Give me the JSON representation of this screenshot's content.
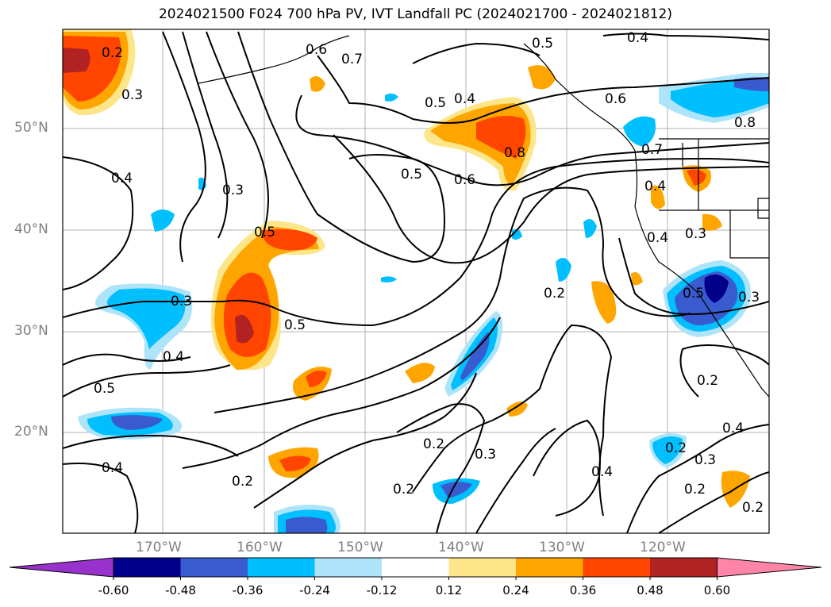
{
  "title": "2024021500 F024 700 hPa PV, IVT Landfall PC (2024021700 - 2024021812)",
  "lat_labels": [
    "50°N",
    "40°N",
    "30°N",
    "20°N"
  ],
  "lon_labels": [
    "170°W",
    "160°W",
    "150°W",
    "140°W",
    "130°W",
    "120°W"
  ],
  "colorbar": {
    "ticks": [
      "-0.60",
      "-0.48",
      "-0.36",
      "-0.24",
      "-0.12",
      "0.12",
      "0.24",
      "0.36",
      "0.48",
      "0.60"
    ],
    "colors": [
      "#9932cc",
      "#00008b",
      "#3a5bcf",
      "#00bfff",
      "#aee4fa",
      "#ffffff",
      "#fde68a",
      "#ffa500",
      "#ff4500",
      "#b22222",
      "#ff85a8"
    ]
  },
  "contour_labels": [
    "0.2",
    "0.3",
    "0.4",
    "0.5",
    "0.6",
    "0.7",
    "0.8"
  ],
  "map_colors": {
    "contour": "#000000",
    "grid": "#b0b0b0",
    "axis_text": "#808080"
  }
}
